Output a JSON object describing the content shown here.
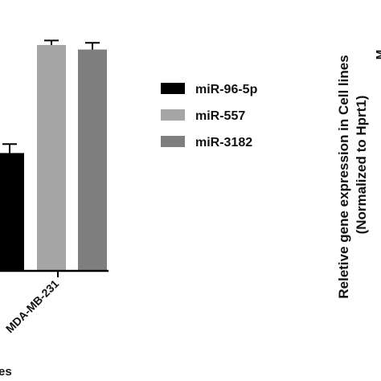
{
  "chart_data": {
    "type": "bar",
    "categories": [
      "MDA-MB-231"
    ],
    "series": [
      {
        "name": "miR-96-5p",
        "color": "#000000",
        "values": [
          0.52
        ],
        "errors": [
          0.04
        ]
      },
      {
        "name": "miR-557",
        "color": "#a6a6a6",
        "values": [
          1.0
        ],
        "errors": [
          0.02
        ]
      },
      {
        "name": "miR-3182",
        "color": "#7f7f7f",
        "values": [
          0.98
        ],
        "errors": [
          0.03
        ]
      }
    ],
    "ylim": [
      0,
      1.2
    ],
    "xlabel_partial": "es",
    "legend_placement": "right",
    "right_panel": {
      "ylabel_line1": "Reletive gene expression in Cell lines",
      "ylabel_line2": "(Normalized to Hprt1)",
      "cut_text": "M"
    }
  }
}
